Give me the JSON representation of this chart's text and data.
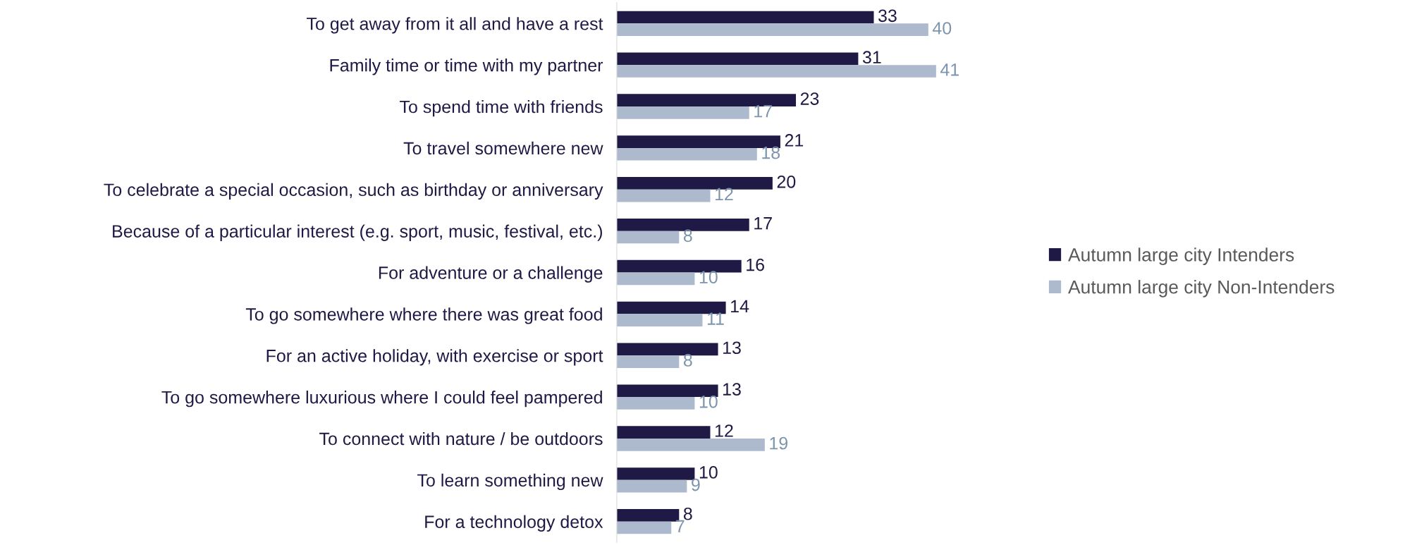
{
  "chart_data": {
    "type": "bar",
    "orientation": "horizontal",
    "categories": [
      "To get away from it all and have a rest",
      "Family time or time with my partner",
      "To spend time with friends",
      "To travel somewhere new",
      "To celebrate a special occasion, such as birthday or anniversary",
      "Because of a particular interest (e.g. sport, music, festival, etc.)",
      "For adventure or a challenge",
      "To go somewhere where there was great food",
      "For an active holiday, with exercise or sport",
      "To go somewhere luxurious where I could feel pampered",
      "To connect with nature / be outdoors",
      "To learn something new",
      "For a technology detox"
    ],
    "series": [
      {
        "name": "Autumn large city Intenders",
        "color": "#1f1a45",
        "values": [
          33,
          31,
          23,
          21,
          20,
          17,
          16,
          14,
          13,
          13,
          12,
          10,
          8
        ]
      },
      {
        "name": "Autumn large city Non-Intenders",
        "color": "#adb9cc",
        "values": [
          40,
          41,
          17,
          18,
          12,
          8,
          10,
          11,
          8,
          10,
          19,
          9,
          7
        ]
      }
    ],
    "tick_labels": "y",
    "data_labels": true,
    "legend": "right",
    "grid": false
  }
}
